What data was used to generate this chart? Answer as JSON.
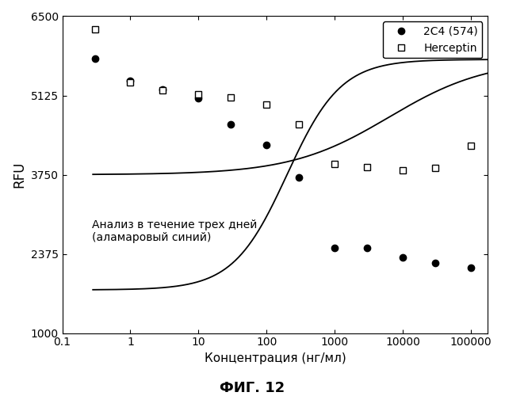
{
  "title": "",
  "xlabel": "Концентрация (нг/мл)",
  "ylabel": "RFU",
  "fig_label": "ФИГ. 12",
  "annotation": "Анализ в течение трех дней\n(аламаровый синий)",
  "ylim": [
    1000,
    6500
  ],
  "yticks": [
    1000,
    2375,
    3750,
    5125,
    6500
  ],
  "xticks_log": [
    -1,
    0,
    1,
    2,
    3,
    4,
    5
  ],
  "xtick_labels": [
    "0.1",
    "1",
    "10",
    "100",
    "1000",
    "10000",
    "100000"
  ],
  "series_2c4": {
    "label": "2C4 (574)",
    "x_data": [
      0.3,
      1.0,
      3.0,
      10.0,
      30.0,
      100.0,
      300.0,
      1000.0,
      3000.0,
      10000.0,
      30000.0,
      100000.0
    ],
    "y_data": [
      5760,
      5380,
      5230,
      5080,
      4620,
      4260,
      3700,
      2480,
      2480,
      2310,
      2220,
      2130
    ],
    "curve_params": [
      5750,
      1750,
      2.3,
      1.1
    ]
  },
  "series_herceptin": {
    "label": "Herceptin",
    "x_data": [
      0.3,
      1.0,
      3.0,
      10.0,
      30.0,
      100.0,
      300.0,
      1000.0,
      3000.0,
      10000.0,
      30000.0,
      100000.0
    ],
    "y_data": [
      6280,
      5350,
      5220,
      5150,
      5090,
      4970,
      4620,
      3940,
      3880,
      3820,
      3870,
      4250
    ],
    "curve_params": [
      5750,
      3750,
      3.8,
      0.6
    ]
  },
  "background_color": "white",
  "linewidth": 1.3,
  "markersize": 6
}
